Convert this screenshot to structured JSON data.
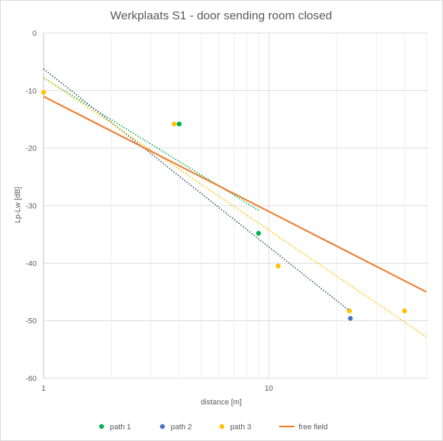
{
  "chart_data": {
    "type": "scatter",
    "title": "Werkplaats S1 - door sending room closed",
    "xlabel": "distance [m]",
    "ylabel": "Lp-Lw [dB]",
    "x_scale": "log",
    "xlim": [
      1,
      50
    ],
    "ylim": [
      -60,
      0
    ],
    "x_major_ticks": [
      1,
      10
    ],
    "y_ticks": [
      0,
      -10,
      -20,
      -30,
      -40,
      -50,
      -60
    ],
    "grid": true,
    "legend_position": "bottom",
    "series": [
      {
        "name": "path 1",
        "kind": "points",
        "color": "#00B050",
        "points": [
          [
            4.0,
            -15.8
          ],
          [
            9.0,
            -34.8
          ]
        ],
        "trendline": {
          "type": "log",
          "x": [
            1,
            9
          ],
          "y": [
            -7.8,
            -30.8
          ],
          "color": "#00B050",
          "style": "dotted"
        }
      },
      {
        "name": "path 2",
        "kind": "points",
        "color": "#4472C4",
        "points": [
          [
            23.0,
            -49.6
          ]
        ],
        "trendline": {
          "type": "log",
          "x": [
            1,
            23
          ],
          "y": [
            -6.2,
            -48.4
          ],
          "color": "#44546A",
          "style": "dotted"
        }
      },
      {
        "name": "path 3",
        "kind": "points",
        "color": "#FFC000",
        "points": [
          [
            1.0,
            -10.3
          ],
          [
            3.8,
            -15.8
          ],
          [
            11.0,
            -40.5
          ],
          [
            22.8,
            -48.3
          ],
          [
            40.0,
            -48.3
          ]
        ],
        "trendline": {
          "type": "log",
          "x": [
            1,
            50
          ],
          "y": [
            -7.7,
            -52.8
          ],
          "color": "#FFC000",
          "style": "dotted"
        }
      },
      {
        "name": "free field",
        "kind": "line",
        "color": "#ED7D31",
        "x": [
          1,
          50
        ],
        "y": [
          -11.0,
          -45.0
        ]
      }
    ]
  }
}
